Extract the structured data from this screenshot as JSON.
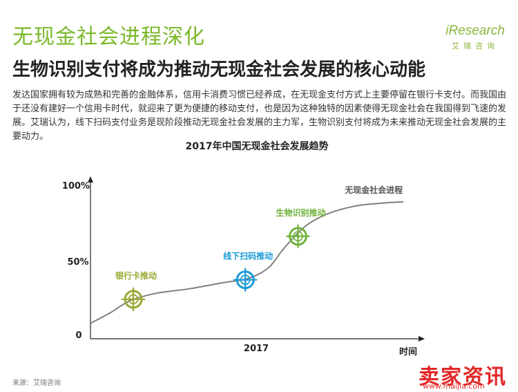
{
  "header": {
    "title": "无现金社会进程深化",
    "subtitle": "生物识别支付将成为推动无现金社会发展的核心动能"
  },
  "brand": {
    "logo": "iResearch",
    "tagline": "艾瑞咨询"
  },
  "body_text": "发达国家拥有较为成熟和完善的金融体系，信用卡消费习惯已经养成，在无现金支付方式上主要停留在银行卡支付。而我国由于还没有建好一个信用卡时代，就迎来了更为便捷的移动支付，也是因为这种独特的因素使得无现金社会在我国得到飞速的发展。艾瑞认为，线下扫码支付业务是现阶段推动无现金社会发展的主力军，生物识别支付将成为未来推动无现金社会发展的主要动力。",
  "source": "来源：艾瑞咨询",
  "watermark": {
    "text": "卖家资讯",
    "url": "www.maijia.com"
  },
  "colors": {
    "title_green": "#7ab829",
    "curve": "#808080",
    "bank_card": "#9aa834",
    "qr_scan": "#1a9ad6",
    "biometric": "#6fb23a",
    "watermark_red": "#e22727"
  },
  "chart_data": {
    "type": "line",
    "title": "2017年中国无现金社会发展趋势",
    "xlabel": "时间",
    "ylabel": "",
    "x_tick": "2017",
    "yticks": [
      "0",
      "50%",
      "100%"
    ],
    "ylim": [
      0,
      100
    ],
    "series": [
      {
        "name": "无现金社会进程",
        "x": [
          0,
          6,
          12,
          20,
          30,
          40,
          48,
          54,
          58,
          62,
          66,
          72,
          80,
          88,
          95
        ],
        "y": [
          8,
          15,
          23,
          28,
          31,
          35,
          38,
          45,
          56,
          66,
          74,
          81,
          86,
          88,
          89
        ]
      }
    ],
    "annotations": [
      {
        "label": "银行卡推动",
        "x": 13,
        "y": 24,
        "color": "#9aa834"
      },
      {
        "label": "线下扫码推动",
        "x": 47,
        "y": 37,
        "color": "#1a9ad6"
      },
      {
        "label": "生物识别推动",
        "x": 63,
        "y": 66,
        "color": "#6fb23a"
      }
    ]
  }
}
